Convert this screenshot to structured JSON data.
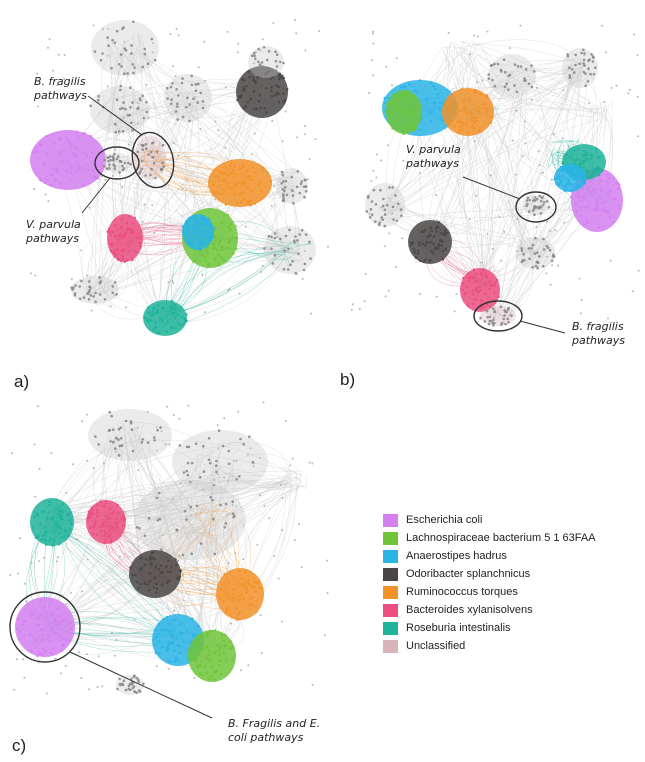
{
  "panels": {
    "a": {
      "letter": "a)",
      "callouts": {
        "fragilis": [
          "B. fragilis",
          "pathways"
        ],
        "parvula": [
          "V. parvula",
          "pathways"
        ]
      }
    },
    "b": {
      "letter": "b)",
      "callouts": {
        "parvula": [
          "V. parvula",
          "pathways"
        ],
        "fragilis": [
          "B. fragilis",
          "pathways"
        ]
      }
    },
    "c": {
      "letter": "c)",
      "callouts": {
        "fragilis_ecoli": [
          "B. Fragilis and E.",
          "coli pathways"
        ]
      }
    }
  },
  "legend": [
    {
      "label": "Escherichia coli",
      "color": "#d47ff0"
    },
    {
      "label": "Lachnospiraceae bacterium 5 1 63FAA",
      "color": "#6fc43a"
    },
    {
      "label": "Anaerostipes hadrus",
      "color": "#2ab4e6"
    },
    {
      "label": "Odoribacter splanchnicus",
      "color": "#4a4646"
    },
    {
      "label": "Ruminococcus torques",
      "color": "#f2922a"
    },
    {
      "label": "Bacteroides xylanisolvens",
      "color": "#ea4f80"
    },
    {
      "label": "Roseburia intestinalis",
      "color": "#1fb39a"
    },
    {
      "label": "Unclassified",
      "color": "#d8b3b8"
    }
  ],
  "colors": {
    "background": "#ffffff",
    "edge": "#cfcfcf",
    "node_gray": "#9a9a9a",
    "callout_line": "#333333"
  }
}
